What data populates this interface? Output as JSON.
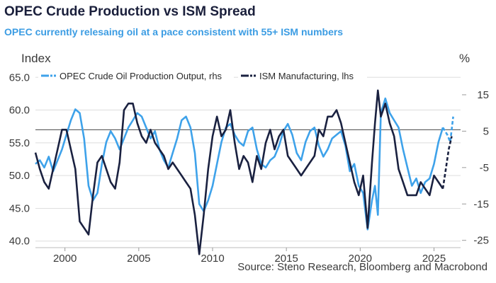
{
  "title": "OPEC Crude Production vs ISM Spread",
  "subtitle": "OPEC currently relesaing oil at a pace consistent with 55+ ISM numbers",
  "source": "Source: Steno Research, Bloomberg and Macrobond",
  "colors": {
    "opec": "#3ea2ea",
    "ism": "#1a2140",
    "ref_line": "#444444",
    "grid": "#dedede"
  },
  "chart_data": {
    "type": "line",
    "title": "OPEC Crude Production vs ISM Spread",
    "ylabel_left": "Index",
    "ylabel_right": "%",
    "xlim": [
      1998,
      2026.8
    ],
    "ylim_left": [
      39,
      66
    ],
    "ylim_right": [
      -27,
      21.6
    ],
    "x_ticks": [
      2000,
      2005,
      2010,
      2015,
      2020,
      2025
    ],
    "x_tick_labels": [
      "2000",
      "2005",
      "2010",
      "2015",
      "2020",
      "2025"
    ],
    "y_left_ticks": [
      40,
      45,
      50,
      55,
      60,
      65
    ],
    "y_left_tick_labels": [
      "40.0",
      "45.0",
      "50.0",
      "55.0",
      "60.0",
      "65.0"
    ],
    "y_right_ticks": [
      -25,
      -15,
      -5,
      5,
      15
    ],
    "y_right_tick_labels": [
      "-25",
      "-15",
      "-5",
      "5",
      "15"
    ],
    "reference_line_left": 57,
    "legend": [
      {
        "name": "OPEC Crude Oil Production Output, rhs",
        "color": "#3ea2ea"
      },
      {
        "name": "ISM Manufacturing, lhs",
        "color": "#1a2140"
      }
    ],
    "series": [
      {
        "name": "OPEC Crude Oil Production Output, rhs",
        "axis": "right",
        "color": "#3ea2ea",
        "x": [
          1998.0,
          1998.3,
          1998.6,
          1998.9,
          1999.2,
          1999.5,
          1999.8,
          2000.1,
          2000.4,
          2000.7,
          2001.0,
          2001.3,
          2001.6,
          2001.9,
          2002.2,
          2002.5,
          2002.8,
          2003.1,
          2003.4,
          2003.7,
          2004.0,
          2004.3,
          2004.6,
          2004.9,
          2005.2,
          2005.5,
          2005.8,
          2006.1,
          2006.4,
          2006.7,
          2007.0,
          2007.3,
          2007.6,
          2007.9,
          2008.2,
          2008.5,
          2008.8,
          2009.1,
          2009.4,
          2009.7,
          2010.0,
          2010.3,
          2010.6,
          2010.9,
          2011.2,
          2011.5,
          2011.8,
          2012.1,
          2012.4,
          2012.7,
          2013.0,
          2013.3,
          2013.6,
          2013.9,
          2014.2,
          2014.5,
          2014.8,
          2015.1,
          2015.4,
          2015.7,
          2016.0,
          2016.3,
          2016.6,
          2016.9,
          2017.2,
          2017.5,
          2017.8,
          2018.1,
          2018.4,
          2018.7,
          2019.0,
          2019.3,
          2019.6,
          2019.9,
          2020.2,
          2020.5,
          2020.8,
          2021.0,
          2021.2,
          2021.4,
          2021.7,
          2022.0,
          2022.3,
          2022.6,
          2022.9,
          2023.2,
          2023.5,
          2023.8,
          2024.1,
          2024.4,
          2024.7,
          2025.0,
          2025.3,
          2025.6
        ],
        "y": [
          -4,
          -3,
          -5,
          -2,
          -6,
          -3,
          0,
          4,
          8,
          11,
          10,
          3,
          -10,
          -14,
          -12,
          -4,
          2,
          5,
          3,
          0,
          3,
          6,
          8,
          10,
          9,
          6,
          3,
          5,
          0,
          -3,
          -5,
          -1,
          3,
          8,
          9,
          6,
          -1,
          -15,
          -17,
          -14,
          -10,
          -4,
          2,
          6,
          7,
          4,
          2,
          1,
          5,
          6,
          0,
          -4,
          -5,
          -3,
          -2,
          1,
          5,
          7,
          4,
          -1,
          -3,
          2,
          5,
          6,
          1,
          -2,
          0,
          3,
          4,
          5,
          1,
          -6,
          -4,
          -10,
          -12,
          -22,
          -14,
          -10,
          -18,
          10,
          14,
          10,
          8,
          6,
          0,
          -5,
          -10,
          -8,
          -12,
          -9,
          -8,
          -4,
          2,
          6
        ],
        "dashed_x": [
          2025.6,
          2025.9,
          2026.1,
          2026.3
        ],
        "dashed_y": [
          6,
          4,
          2,
          9
        ]
      },
      {
        "name": "ISM Manufacturing, lhs",
        "axis": "left",
        "color": "#1a2140",
        "x": [
          1998.0,
          1998.3,
          1998.6,
          1998.9,
          1999.2,
          1999.5,
          1999.8,
          2000.1,
          2000.4,
          2000.7,
          2001.0,
          2001.3,
          2001.6,
          2001.9,
          2002.2,
          2002.5,
          2002.8,
          2003.1,
          2003.4,
          2003.7,
          2004.0,
          2004.3,
          2004.6,
          2004.9,
          2005.2,
          2005.5,
          2005.8,
          2006.1,
          2006.4,
          2006.7,
          2007.0,
          2007.3,
          2007.6,
          2007.9,
          2008.2,
          2008.5,
          2008.8,
          2009.1,
          2009.4,
          2009.7,
          2010.0,
          2010.3,
          2010.6,
          2010.9,
          2011.2,
          2011.5,
          2011.8,
          2012.1,
          2012.4,
          2012.7,
          2013.0,
          2013.3,
          2013.6,
          2013.9,
          2014.2,
          2014.5,
          2014.8,
          2015.1,
          2015.4,
          2015.7,
          2016.0,
          2016.3,
          2016.6,
          2016.9,
          2017.2,
          2017.5,
          2017.8,
          2018.1,
          2018.4,
          2018.7,
          2019.0,
          2019.3,
          2019.6,
          2019.9,
          2020.2,
          2020.5,
          2020.8,
          2021.0,
          2021.2,
          2021.4,
          2021.7,
          2022.0,
          2022.3,
          2022.6,
          2022.9,
          2023.2,
          2023.5,
          2023.8,
          2024.1,
          2024.4,
          2024.7,
          2025.0,
          2025.3,
          2025.6
        ],
        "y": [
          53.5,
          51,
          49,
          48,
          51,
          54,
          57,
          57,
          54,
          51,
          43,
          42,
          41,
          47,
          52,
          53,
          51,
          49,
          48,
          52,
          60,
          61,
          61,
          58,
          56,
          55,
          57,
          55,
          54,
          53,
          51,
          52,
          51,
          50,
          49,
          48,
          44,
          38,
          44,
          51,
          56,
          59,
          56,
          57,
          60,
          55,
          51,
          53,
          52,
          49,
          53,
          51,
          55,
          57,
          54,
          56,
          57,
          53,
          52,
          51,
          50,
          51,
          52,
          53,
          57,
          56,
          59,
          59,
          60,
          58,
          55,
          52,
          49,
          47,
          50,
          42,
          52,
          58,
          63,
          59,
          61,
          58,
          56,
          51,
          49,
          47,
          47,
          47,
          49,
          48,
          47,
          50,
          49,
          48
        ],
        "dashed_x": [
          2025.6,
          2025.8,
          2026.0,
          2026.2
        ],
        "dashed_y": [
          48,
          51,
          54,
          56
        ]
      }
    ]
  }
}
